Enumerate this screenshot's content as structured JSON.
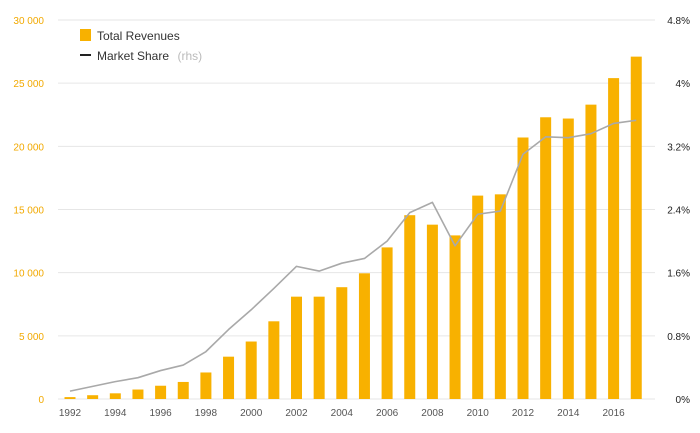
{
  "chart_data": {
    "type": "bar",
    "title": "",
    "xlabel": "",
    "ylabel": "",
    "categories": [
      "1992",
      "1993",
      "1994",
      "1995",
      "1996",
      "1997",
      "1998",
      "1999",
      "2000",
      "2001",
      "2002",
      "2003",
      "2004",
      "2005",
      "2006",
      "2007",
      "2008",
      "2009",
      "2010",
      "2011",
      "2012",
      "2013",
      "2014",
      "2015",
      "2016",
      "2017"
    ],
    "x_tick_labels": [
      "1992",
      "1994",
      "1996",
      "1998",
      "2000",
      "2002",
      "2004",
      "2006",
      "2008",
      "2010",
      "2012",
      "2014",
      "2016"
    ],
    "ylim": [
      0,
      30000
    ],
    "y_ticks": [
      "0",
      "5 000",
      "10 000",
      "15 000",
      "20 000",
      "25 000",
      "30 000"
    ],
    "y2lim": [
      0,
      4.8
    ],
    "y2_ticks": [
      "0%",
      "0.8%",
      "1.6%",
      "2.4%",
      "3.2%",
      "4%",
      "4.8%"
    ],
    "legend_position": "top-left",
    "series": [
      {
        "name": "Total Revenues",
        "type": "bar",
        "axis": "left",
        "color": "#F8B100",
        "values": [
          150,
          300,
          450,
          750,
          1050,
          1350,
          2100,
          3350,
          4550,
          6150,
          8100,
          8100,
          8850,
          9950,
          12000,
          14550,
          13800,
          12950,
          16100,
          16200,
          20700,
          22300,
          22200,
          23300,
          25400,
          27100
        ]
      },
      {
        "name": "Market Share",
        "note": "(rhs)",
        "type": "line",
        "axis": "right",
        "color": "#A9A9A9",
        "legend_color": "#222222",
        "values": [
          0.1,
          0.16,
          0.22,
          0.27,
          0.36,
          0.43,
          0.6,
          0.88,
          1.13,
          1.4,
          1.68,
          1.62,
          1.72,
          1.78,
          2.0,
          2.36,
          2.49,
          1.94,
          2.34,
          2.38,
          3.1,
          3.32,
          3.31,
          3.36,
          3.49,
          3.53
        ]
      }
    ]
  },
  "legend": {
    "revenues_label": "Total Revenues",
    "share_label": "Market Share",
    "share_note": "(rhs)"
  }
}
